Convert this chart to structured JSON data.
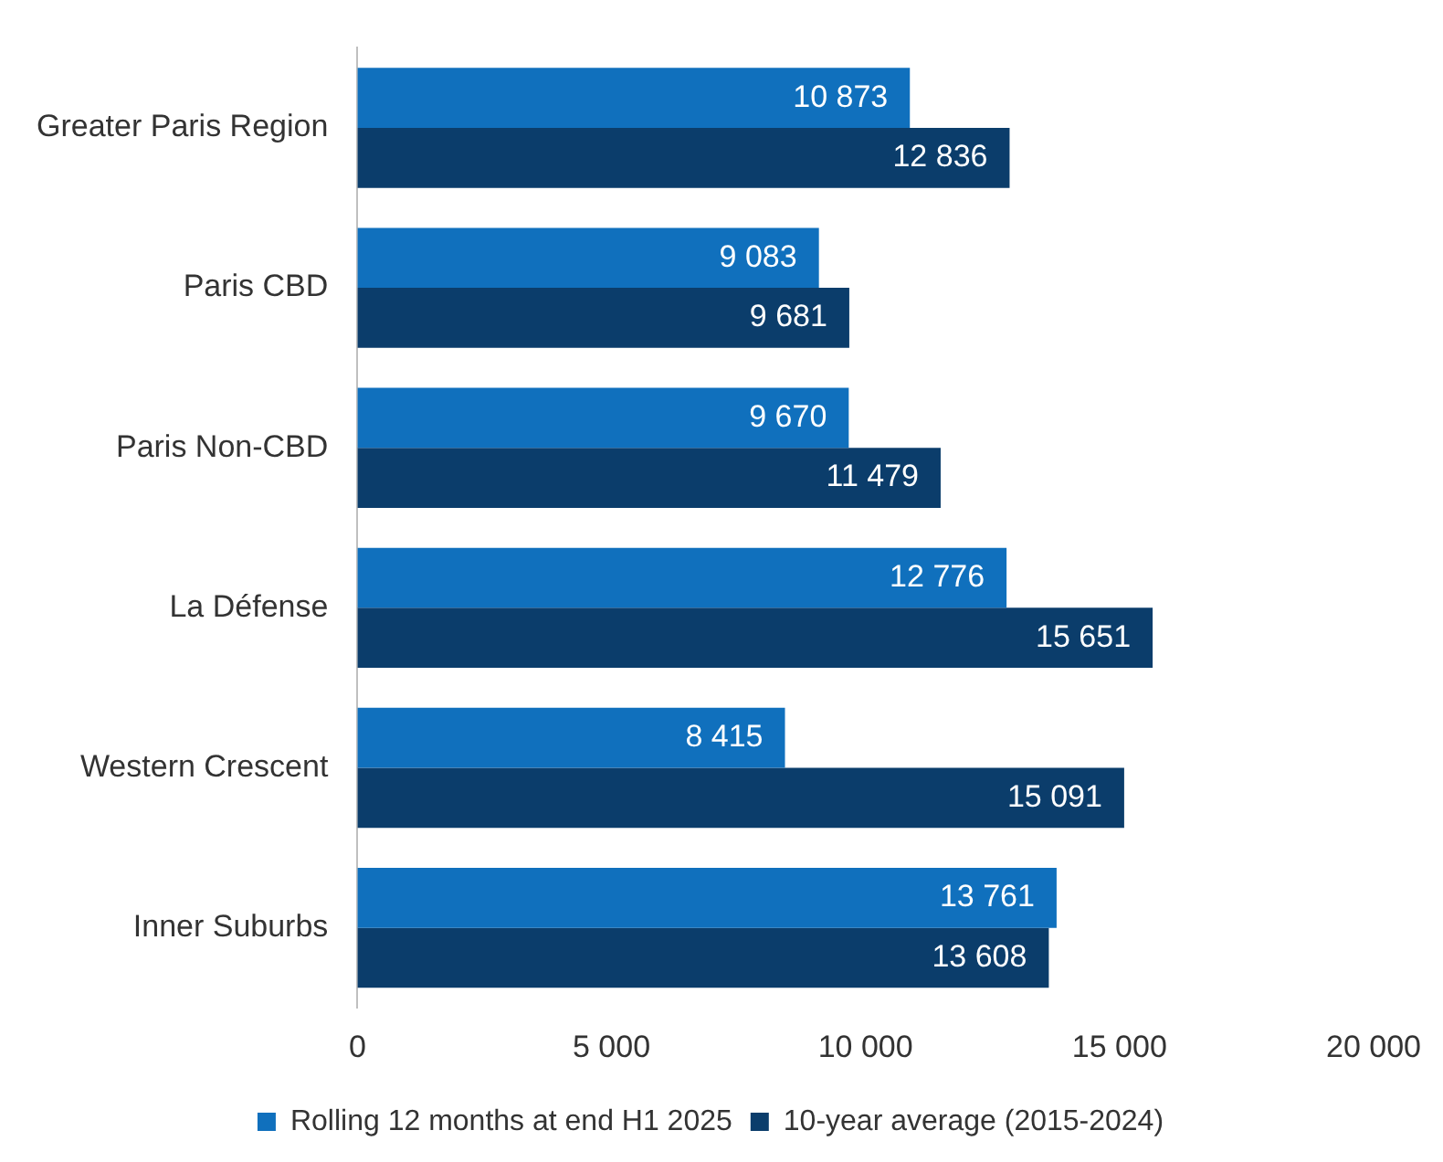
{
  "chart_data": {
    "type": "bar",
    "orientation": "horizontal",
    "categories": [
      "Greater Paris Region",
      "Paris CBD",
      "Paris Non-CBD",
      "La Défense",
      "Western Crescent",
      "Inner Suburbs"
    ],
    "series": [
      {
        "name": "Rolling 12 months at end H1 2025",
        "color": "#1070bd",
        "values": [
          10873,
          9083,
          9670,
          12776,
          8415,
          13761
        ],
        "value_labels": [
          "10 873",
          "9 083",
          "9 670",
          "12 776",
          "8 415",
          "13 761"
        ]
      },
      {
        "name": "10-year average (2015-2024)",
        "color": "#0b3d6b",
        "values": [
          12836,
          9681,
          11479,
          15651,
          15091,
          13608
        ],
        "value_labels": [
          "12 836",
          "9 681",
          "11 479",
          "15 651",
          "15 091",
          "13 608"
        ]
      }
    ],
    "xlim": [
      0,
      20000
    ],
    "xticks": [
      0,
      {
        "value": 5000,
        "label": "5 000"
      },
      {
        "value": 10000,
        "label": "10 000"
      },
      {
        "value": 15000,
        "label": "15 000"
      },
      {
        "value": 20000,
        "label": "20 000"
      }
    ],
    "grid": false,
    "legend": "bottom"
  }
}
